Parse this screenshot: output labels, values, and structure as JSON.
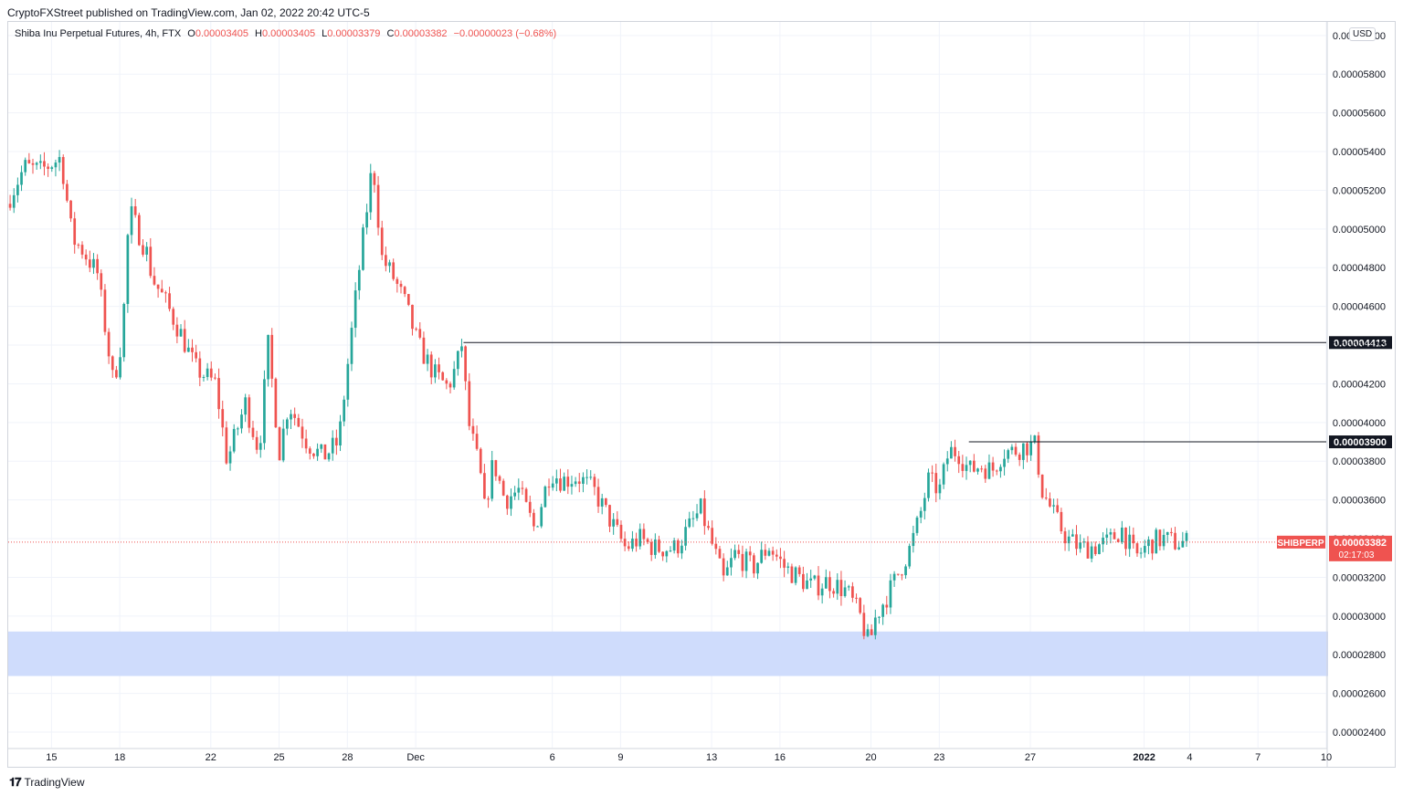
{
  "header": {
    "published": "CryptoFXStreet published on TradingView.com, Jan 02, 2022 20:42 UTC-5"
  },
  "legend": {
    "symbol": "Shiba Inu Perpetual Futures, 4h, FTX",
    "O": "0.00003405",
    "H": "0.00003405",
    "L": "0.00003379",
    "C": "0.00003382",
    "change": "−0.00000023 (−0.68%)"
  },
  "currency": "USD",
  "footer": {
    "brand": "TradingView"
  },
  "colors": {
    "up": "#26a69a",
    "down": "#ef5350",
    "zone": "#cfdcfc",
    "grid": "#f0f3fa",
    "level_line": "#131722",
    "price_tag": "#ef5350"
  },
  "chart_data": {
    "type": "candlestick",
    "y_axis_ticks": [
      "0.00002400",
      "0.00002600",
      "0.00002800",
      "0.00003000",
      "0.00003200",
      "0.00003400",
      "0.00003600",
      "0.00003800",
      "0.00004000",
      "0.00004200",
      "0.00004400",
      "0.00004600",
      "0.00004800",
      "0.00005000",
      "0.00005200",
      "0.00005400",
      "0.00005600",
      "0.00005800",
      "0.00006000"
    ],
    "ylim": [
      2.32e-05,
      6.07e-05
    ],
    "x_axis_ticks": [
      "15",
      "18",
      "22",
      "25",
      "28",
      "Dec",
      "6",
      "9",
      "13",
      "16",
      "20",
      "23",
      "27",
      "2022",
      "4",
      "7",
      "10"
    ],
    "x_tick_days": [
      15,
      18,
      22,
      25,
      28,
      31,
      37,
      40,
      44,
      47,
      51,
      54,
      58,
      63,
      65,
      68,
      71
    ],
    "x_range_days": [
      13.1,
      71
    ],
    "levels": [
      {
        "label": "0.00004413",
        "value": 4.413e-05,
        "from_day": 33.1
      },
      {
        "label": "0.00003900",
        "value": 3.9e-05,
        "from_day": 55.3
      }
    ],
    "support_zone": {
      "low": 2.69e-05,
      "high": 2.92e-05
    },
    "last_price": {
      "symbol": "SHIBPERP",
      "value": "0.00003382",
      "countdown": "02:17:03",
      "value_num": 3.382e-05
    },
    "candle_interval_days": 0.1667,
    "price_path_days": [
      13.1,
      13.9,
      14.6,
      15.5,
      16.0,
      16.4,
      17.1,
      17.8,
      18.2,
      18.5,
      19.3,
      19.5,
      20.1,
      20.8,
      21.4,
      22.3,
      22.8,
      23.6,
      24.2,
      24.6,
      25.1,
      25.5,
      25.9,
      26.3,
      27.0,
      27.7,
      28.5,
      29.2,
      29.6,
      30.1,
      30.6,
      31.2,
      31.9,
      32.5,
      32.9,
      33.1,
      33.4,
      33.9,
      34.1,
      34.5,
      35.0,
      35.6,
      36.3,
      37.0,
      37.5,
      38.2,
      38.9,
      39.6,
      40.3,
      40.9,
      41.6,
      42.5,
      43.6,
      44.3,
      44.6,
      45.1,
      45.9,
      46.6,
      47.3,
      47.9,
      48.5,
      49.2,
      50.0,
      50.6,
      51.0,
      51.3,
      52.0,
      52.4,
      52.8,
      53.2,
      53.6,
      54.1,
      54.5,
      54.9,
      55.4,
      55.9,
      56.4,
      56.9,
      57.3,
      57.9,
      58.3,
      58.6,
      58.8,
      59.2,
      59.7,
      60.3,
      60.9,
      61.5,
      62.1,
      62.7,
      63.1,
      63.4,
      63.9,
      64.4,
      64.9
    ],
    "price_path_values": [
      5.13e-05,
      5.32e-05,
      5.3e-05,
      5.37e-05,
      4.95e-05,
      4.9e-05,
      4.77e-05,
      4.2e-05,
      4.45e-05,
      5.1e-05,
      4.87e-05,
      4.75e-05,
      4.62e-05,
      4.45e-05,
      4.28e-05,
      4.2e-05,
      3.8e-05,
      4.1e-05,
      3.85e-05,
      4.4e-05,
      3.85e-05,
      4.1e-05,
      4e-05,
      3.9e-05,
      3.82e-05,
      3.9e-05,
      4.7e-05,
      5.35e-05,
      4.85e-05,
      4.75e-05,
      4.62e-05,
      4.4e-05,
      4.25e-05,
      4.18e-05,
      4.3e-05,
      4.41e-05,
      4e-05,
      3.75e-05,
      3.55e-05,
      3.8e-05,
      3.6e-05,
      3.65e-05,
      3.45e-05,
      3.75e-05,
      3.7e-05,
      3.72e-05,
      3.65e-05,
      3.5e-05,
      3.35e-05,
      3.4e-05,
      3.35e-05,
      3.35e-05,
      3.55e-05,
      3.3e-05,
      3.18e-05,
      3.32e-05,
      3.25e-05,
      3.36e-05,
      3.25e-05,
      3.2e-05,
      3.15e-05,
      3.18e-05,
      3.13e-05,
      3e-05,
      2.85e-05,
      3e-05,
      3.15e-05,
      3.25e-05,
      3.35e-05,
      3.5e-05,
      3.7e-05,
      3.65e-05,
      3.85e-05,
      3.85e-05,
      3.75e-05,
      3.78e-05,
      3.75e-05,
      3.85e-05,
      3.85e-05,
      3.88e-05,
      3.88e-05,
      3.65e-05,
      3.6e-05,
      3.5e-05,
      3.4e-05,
      3.35e-05,
      3.36e-05,
      3.38e-05,
      3.45e-05,
      3.3e-05,
      3.35e-05,
      3.38e-05,
      3.4e-05,
      3.38e-05,
      3.38e-05
    ]
  }
}
